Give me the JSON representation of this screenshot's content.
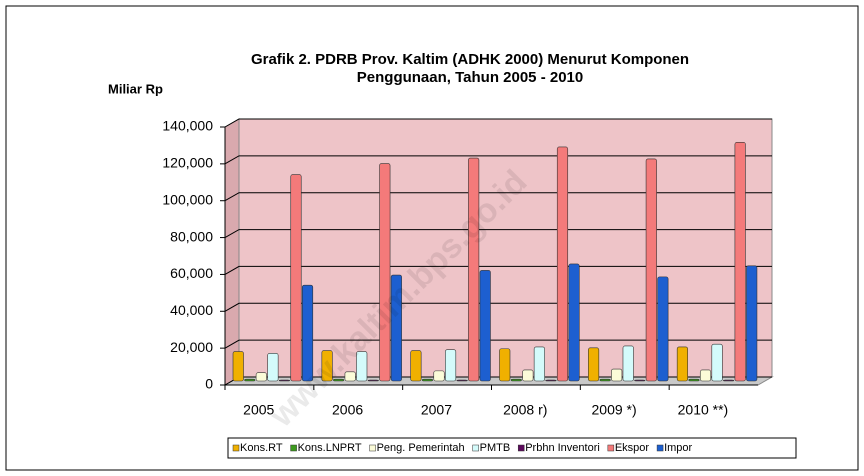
{
  "chart_data": {
    "type": "bar",
    "title": [
      "Grafik 2. PDRB Prov. Kaltim (ADHK 2000) Menurut Komponen",
      "Penggunaan,  Tahun 2005 -  2010"
    ],
    "y_label": "Miliar Rp",
    "watermark": "www.kaltim.bps.go.id",
    "categories": [
      "2005",
      "2006",
      "2007",
      "2008 r)",
      "2009 *)",
      "2010 **)"
    ],
    "series": [
      {
        "name": "Kons.RT",
        "color": "#f0b000",
        "values": [
          16000,
          16500,
          16500,
          17500,
          18000,
          18500
        ]
      },
      {
        "name": "Kons.LNPRT",
        "color": "#3d9a1e",
        "values": [
          1000,
          1000,
          1000,
          1000,
          1000,
          1000
        ]
      },
      {
        "name": "Peng. Pemerintah",
        "color": "#fbfbd8",
        "values": [
          4500,
          5000,
          5500,
          6000,
          6500,
          6000
        ]
      },
      {
        "name": "PMTB",
        "color": "#d4fbfb",
        "values": [
          15000,
          16000,
          17000,
          18500,
          19000,
          20000
        ]
      },
      {
        "name": "Prbhn Inventori",
        "color": "#5c0a5c",
        "values": [
          500,
          500,
          500,
          500,
          500,
          500
        ]
      },
      {
        "name": "Ekspor",
        "color": "#f47a7a",
        "values": [
          112000,
          118000,
          121000,
          127000,
          120500,
          129500
        ]
      },
      {
        "name": "Impor",
        "color": "#1d5fd0",
        "values": [
          52000,
          57500,
          60000,
          63500,
          56500,
          62500
        ]
      }
    ],
    "ylim": [
      0,
      140000
    ],
    "yticks": [
      0,
      {
        "value": 20000,
        "label": "20,000"
      },
      {
        "value": 40000,
        "label": "40,000"
      },
      {
        "value": 60000,
        "label": "60,000"
      },
      {
        "value": 80000,
        "label": "80,000"
      },
      {
        "value": 100000,
        "label": "100,000"
      },
      {
        "value": 120000,
        "label": "120,000"
      },
      {
        "value": 140000,
        "label": "140,000"
      }
    ],
    "grid": true,
    "legend": "bottom",
    "wall_color": "#eec4c8"
  }
}
